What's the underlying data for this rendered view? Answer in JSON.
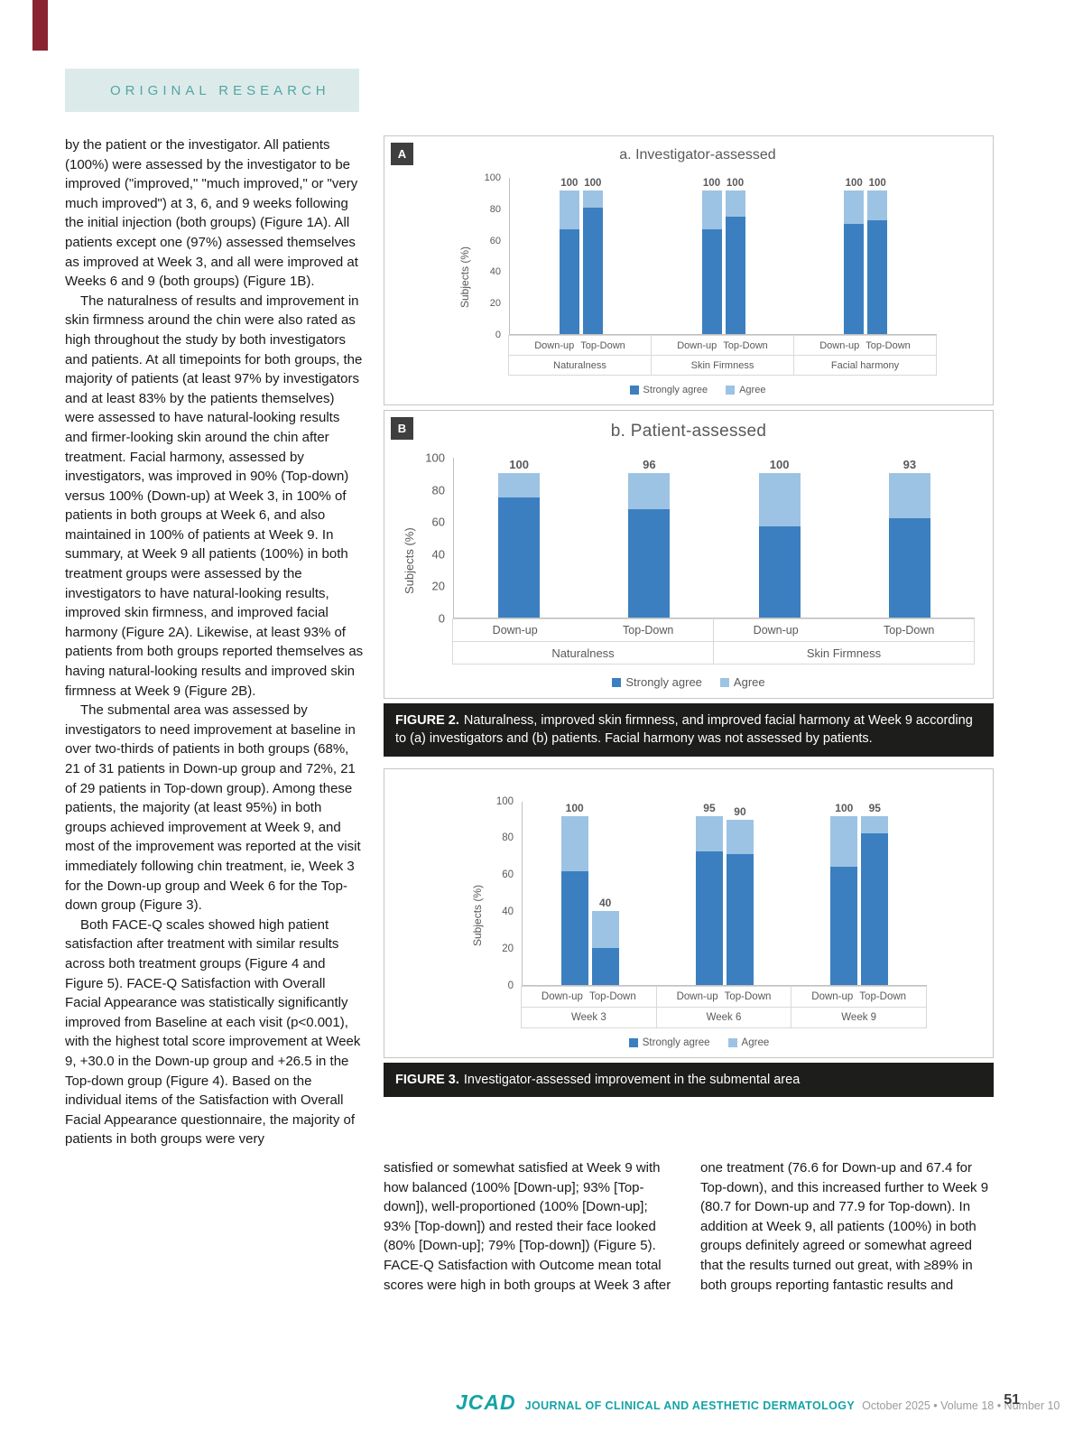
{
  "page": {
    "badge": "ORIGINAL RESEARCH",
    "page_number": "51"
  },
  "article": {
    "left": [
      "by the patient or the investigator. All patients (100%) were assessed by the investigator to be improved (\"improved,\" \"much improved,\" or \"very much improved\") at 3, 6, and 9 weeks following the initial injection (both groups) (Figure 1A). All patients except one (97%) assessed themselves as improved at Week 3, and all were improved at Weeks 6 and 9 (both groups) (Figure 1B).",
      "The naturalness of results and improvement in skin firmness around the chin were also rated as high throughout the study by both investigators and patients. At all timepoints for both groups, the majority of patients (at least 97% by investigators and at least 83% by the patients themselves) were assessed to have natural-looking results and firmer-looking skin around the chin after treatment. Facial harmony, assessed by investigators, was improved in 90% (Top-down) versus 100% (Down-up) at Week 3, in 100% of patients in both groups at Week 6, and also maintained in 100% of patients at Week 9. In summary, at Week 9 all patients (100%) in both treatment groups were assessed by the investigators to have natural-looking results, improved skin firmness, and improved facial harmony (Figure 2A). Likewise, at least 93% of patients from both groups reported themselves as having natural-looking results and improved skin firmness at Week 9 (Figure 2B).",
      "The submental area was assessed by investigators to need improvement at baseline in over two-thirds of patients in both groups (68%, 21 of 31 patients in Down-up group and 72%, 21 of 29 patients in Top-down group). Among these patients, the majority (at least 95%) in both groups achieved improvement at Week 9, and most of the improvement was reported at the visit immediately following chin treatment, ie, Week 3 for the Down-up group and Week 6 for the Top-down group (Figure 3).",
      "Both FACE-Q scales showed high patient satisfaction after treatment with similar results across both treatment groups (Figure 4 and Figure 5). FACE-Q Satisfaction with Overall Facial Appearance was statistically significantly improved from Baseline at each visit (p<0.001), with the highest total score improvement at Week 9, +30.0 in the Down-up group and +26.5 in the Top-down group (Figure 4). Based on the individual items of the Satisfaction with Overall Facial Appearance questionnaire, the majority of patients in both groups were very"
    ],
    "bottom_left": [
      "satisfied or somewhat satisfied at Week 9 with how balanced (100% [Down-up]; 93% [Top-down]), well-proportioned (100% [Down-up]; 93% [Top-down]) and rested their face looked (80% [Down-up]; 79% [Top-down]) (Figure 5). FACE-Q Satisfaction with Outcome mean total scores were high in both groups at Week 3 after"
    ],
    "bottom_right": [
      "one treatment (76.6 for Down-up and 67.4 for Top-down), and this increased further to Week 9 (80.7 for Down-up and 77.9 for Top-down). In addition at Week 9, all patients (100%) in both groups definitely agreed or somewhat agreed that the results turned out great, with ≥89% in both groups reporting fantastic results and"
    ]
  },
  "figures": {
    "panel_tags": {
      "a": "A",
      "b": "B"
    },
    "fig2": {
      "label": "FIGURE 2.",
      "text": "Naturalness, improved skin firmness, and improved facial harmony at Week 9 according to (a) investigators and (b) patients. Facial harmony was not assessed by patients."
    },
    "fig3": {
      "label": "FIGURE 3.",
      "text": "Investigator-assessed improvement in the submental area"
    }
  },
  "footer": {
    "logo": "JCAD",
    "journal": "JOURNAL OF CLINICAL AND AESTHETIC DERMATOLOGY",
    "issue": "October 2025 • Volume 18 • Number 10"
  },
  "colors": {
    "accent_teal": "#14a3a5",
    "badge_bg": "#dcebea",
    "badge_text": "#54a5a2",
    "caption_bg": "#1d1d1b",
    "corner_maroon": "#8a2332",
    "bar_strongly_agree": "#3b7fc0",
    "bar_agree": "#9cc3e3"
  },
  "chart_data": [
    {
      "type": "bar",
      "stacked": true,
      "panel": "A",
      "title": "a. Investigator-assessed",
      "ylabel": "Subjects (%)",
      "yticks": [
        0,
        20,
        40,
        60,
        80,
        100
      ],
      "ymax": 100,
      "grid": false,
      "legend_position": "bottom",
      "series_names": [
        "Strongly agree",
        "Agree"
      ],
      "colors": [
        "#3b7fc0",
        "#9cc3e3"
      ],
      "groups": [
        {
          "label": "Naturalness",
          "bars": [
            {
              "label": "Down-up",
              "total": 100,
              "segments": [
                73,
                27
              ]
            },
            {
              "label": "Top-Down",
              "total": 100,
              "segments": [
                88,
                12
              ]
            }
          ]
        },
        {
          "label": "Skin Firmness",
          "bars": [
            {
              "label": "Down-up",
              "total": 100,
              "segments": [
                73,
                27
              ]
            },
            {
              "label": "Top-Down",
              "total": 100,
              "segments": [
                82,
                18
              ]
            }
          ]
        },
        {
          "label": "Facial harmony",
          "bars": [
            {
              "label": "Down-up",
              "total": 100,
              "segments": [
                77,
                23
              ]
            },
            {
              "label": "Top-Down",
              "total": 100,
              "segments": [
                79,
                21
              ]
            }
          ]
        }
      ]
    },
    {
      "type": "bar",
      "stacked": true,
      "panel": "B",
      "title": "b. Patient-assessed",
      "ylabel": "Subjects (%)",
      "yticks": [
        0,
        20,
        40,
        60,
        80,
        100
      ],
      "ymax": 100,
      "grid": false,
      "legend_position": "bottom",
      "series_names": [
        "Strongly agree",
        "Agree"
      ],
      "colors": [
        "#3b7fc0",
        "#9cc3e3"
      ],
      "groups": [
        {
          "label": "Naturalness",
          "bars": [
            {
              "label": "Down-up",
              "total": 100,
              "segments": [
                83,
                17
              ]
            },
            {
              "label": "Top-Down",
              "total": 96,
              "segments": [
                72,
                24
              ]
            }
          ]
        },
        {
          "label": "Skin Firmness",
          "bars": [
            {
              "label": "Down-up",
              "total": 100,
              "segments": [
                63,
                37
              ]
            },
            {
              "label": "Top-Down",
              "total": 93,
              "segments": [
                64,
                29
              ]
            }
          ]
        }
      ]
    },
    {
      "type": "bar",
      "stacked": true,
      "panel": null,
      "title": "",
      "ylabel": "Subjects (%)",
      "yticks": [
        0,
        20,
        40,
        60,
        80,
        100
      ],
      "ymax": 100,
      "grid": false,
      "legend_position": "bottom",
      "series_names": [
        "Strongly agree",
        "Agree"
      ],
      "colors": [
        "#3b7fc0",
        "#9cc3e3"
      ],
      "groups": [
        {
          "label": "Week 3",
          "bars": [
            {
              "label": "Down-up",
              "total": 100,
              "segments": [
                67,
                33
              ]
            },
            {
              "label": "Top-Down",
              "total": 40,
              "segments": [
                20,
                20
              ]
            }
          ]
        },
        {
          "label": "Week 6",
          "bars": [
            {
              "label": "Down-up",
              "total": 95,
              "segments": [
                75,
                20
              ]
            },
            {
              "label": "Top-Down",
              "total": 90,
              "segments": [
                71,
                19
              ]
            }
          ]
        },
        {
          "label": "Week 9",
          "bars": [
            {
              "label": "Down-up",
              "total": 100,
              "segments": [
                70,
                30
              ]
            },
            {
              "label": "Top-Down",
              "total": 95,
              "segments": [
                85,
                10
              ]
            }
          ]
        }
      ]
    }
  ]
}
